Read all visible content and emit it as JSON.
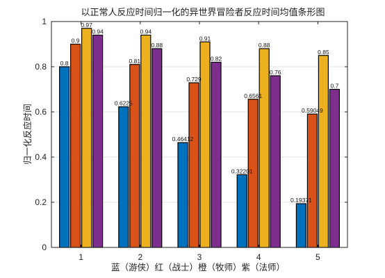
{
  "chart_data": {
    "type": "bar",
    "title": "以正常人反应时间归一化的异世界冒险者反应时间均值条形图",
    "xlabel": "蓝（游侠）红（战士）橙（牧师）紫（法师）",
    "ylabel": "归一化反应时间",
    "categories": [
      "1",
      "2",
      "3",
      "4",
      "5"
    ],
    "ylim": [
      0,
      1
    ],
    "yticks": [
      "0",
      "0.2",
      "0.4",
      "0.6",
      "0.8",
      "1"
    ],
    "grid": "y",
    "series": [
      {
        "color": "#0072BD",
        "values": [
          0.8,
          0.6225,
          0.46412,
          0.32201,
          0.19371
        ],
        "labels": [
          "0.8",
          "0.6225",
          "0.46412",
          "0.32201",
          "0.19371"
        ]
      },
      {
        "color": "#D95319",
        "values": [
          0.9,
          0.81,
          0.729,
          0.6561,
          0.59049
        ],
        "labels": [
          "0.9",
          "0.81",
          "0.729",
          "0.6561",
          "0.59049"
        ]
      },
      {
        "color": "#EDB120",
        "values": [
          0.97,
          0.94,
          0.91,
          0.88,
          0.85
        ],
        "labels": [
          "0.97",
          "0.94",
          "0.91",
          "0.88",
          "0.85"
        ]
      },
      {
        "color": "#7E2F8E",
        "values": [
          0.94,
          0.88,
          0.82,
          0.76,
          0.7
        ],
        "labels": [
          "0.94",
          "0.88",
          "0.82",
          "0.76",
          "0.7"
        ]
      }
    ]
  }
}
